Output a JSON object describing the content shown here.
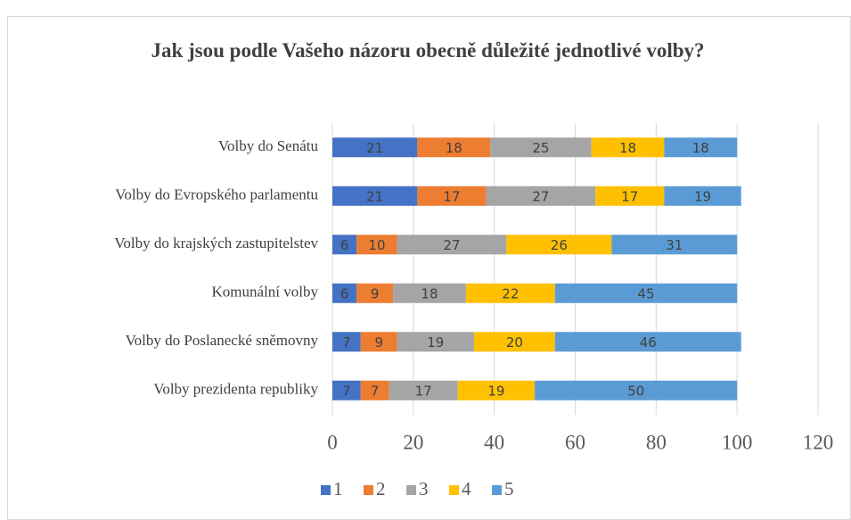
{
  "chart_data": {
    "type": "stacked-bar-horizontal",
    "title": "Jak jsou podle Vašeho názoru obecně důležité jednotlivé volby?",
    "categories": [
      "Volby do Senátu",
      "Volby do Evropského parlamentu",
      "Volby do krajských zastupitelstev",
      "Komunální volby",
      "Volby do Poslanecké sněmovny",
      "Volby prezidenta republiky"
    ],
    "series": [
      {
        "name": "1",
        "color": "#4472c4",
        "values": [
          21,
          21,
          6,
          6,
          7,
          7
        ]
      },
      {
        "name": "2",
        "color": "#ed7d31",
        "values": [
          18,
          17,
          10,
          9,
          9,
          7
        ]
      },
      {
        "name": "3",
        "color": "#a5a5a5",
        "values": [
          25,
          27,
          27,
          18,
          19,
          17
        ]
      },
      {
        "name": "4",
        "color": "#ffc000",
        "values": [
          18,
          17,
          26,
          22,
          20,
          19
        ]
      },
      {
        "name": "5",
        "color": "#5b9bd5",
        "values": [
          18,
          19,
          31,
          45,
          46,
          50
        ]
      }
    ],
    "xlim": [
      0,
      120
    ],
    "xticks": [
      0,
      20,
      40,
      60,
      80,
      100,
      120
    ],
    "grid": true,
    "legend": "bottom"
  }
}
